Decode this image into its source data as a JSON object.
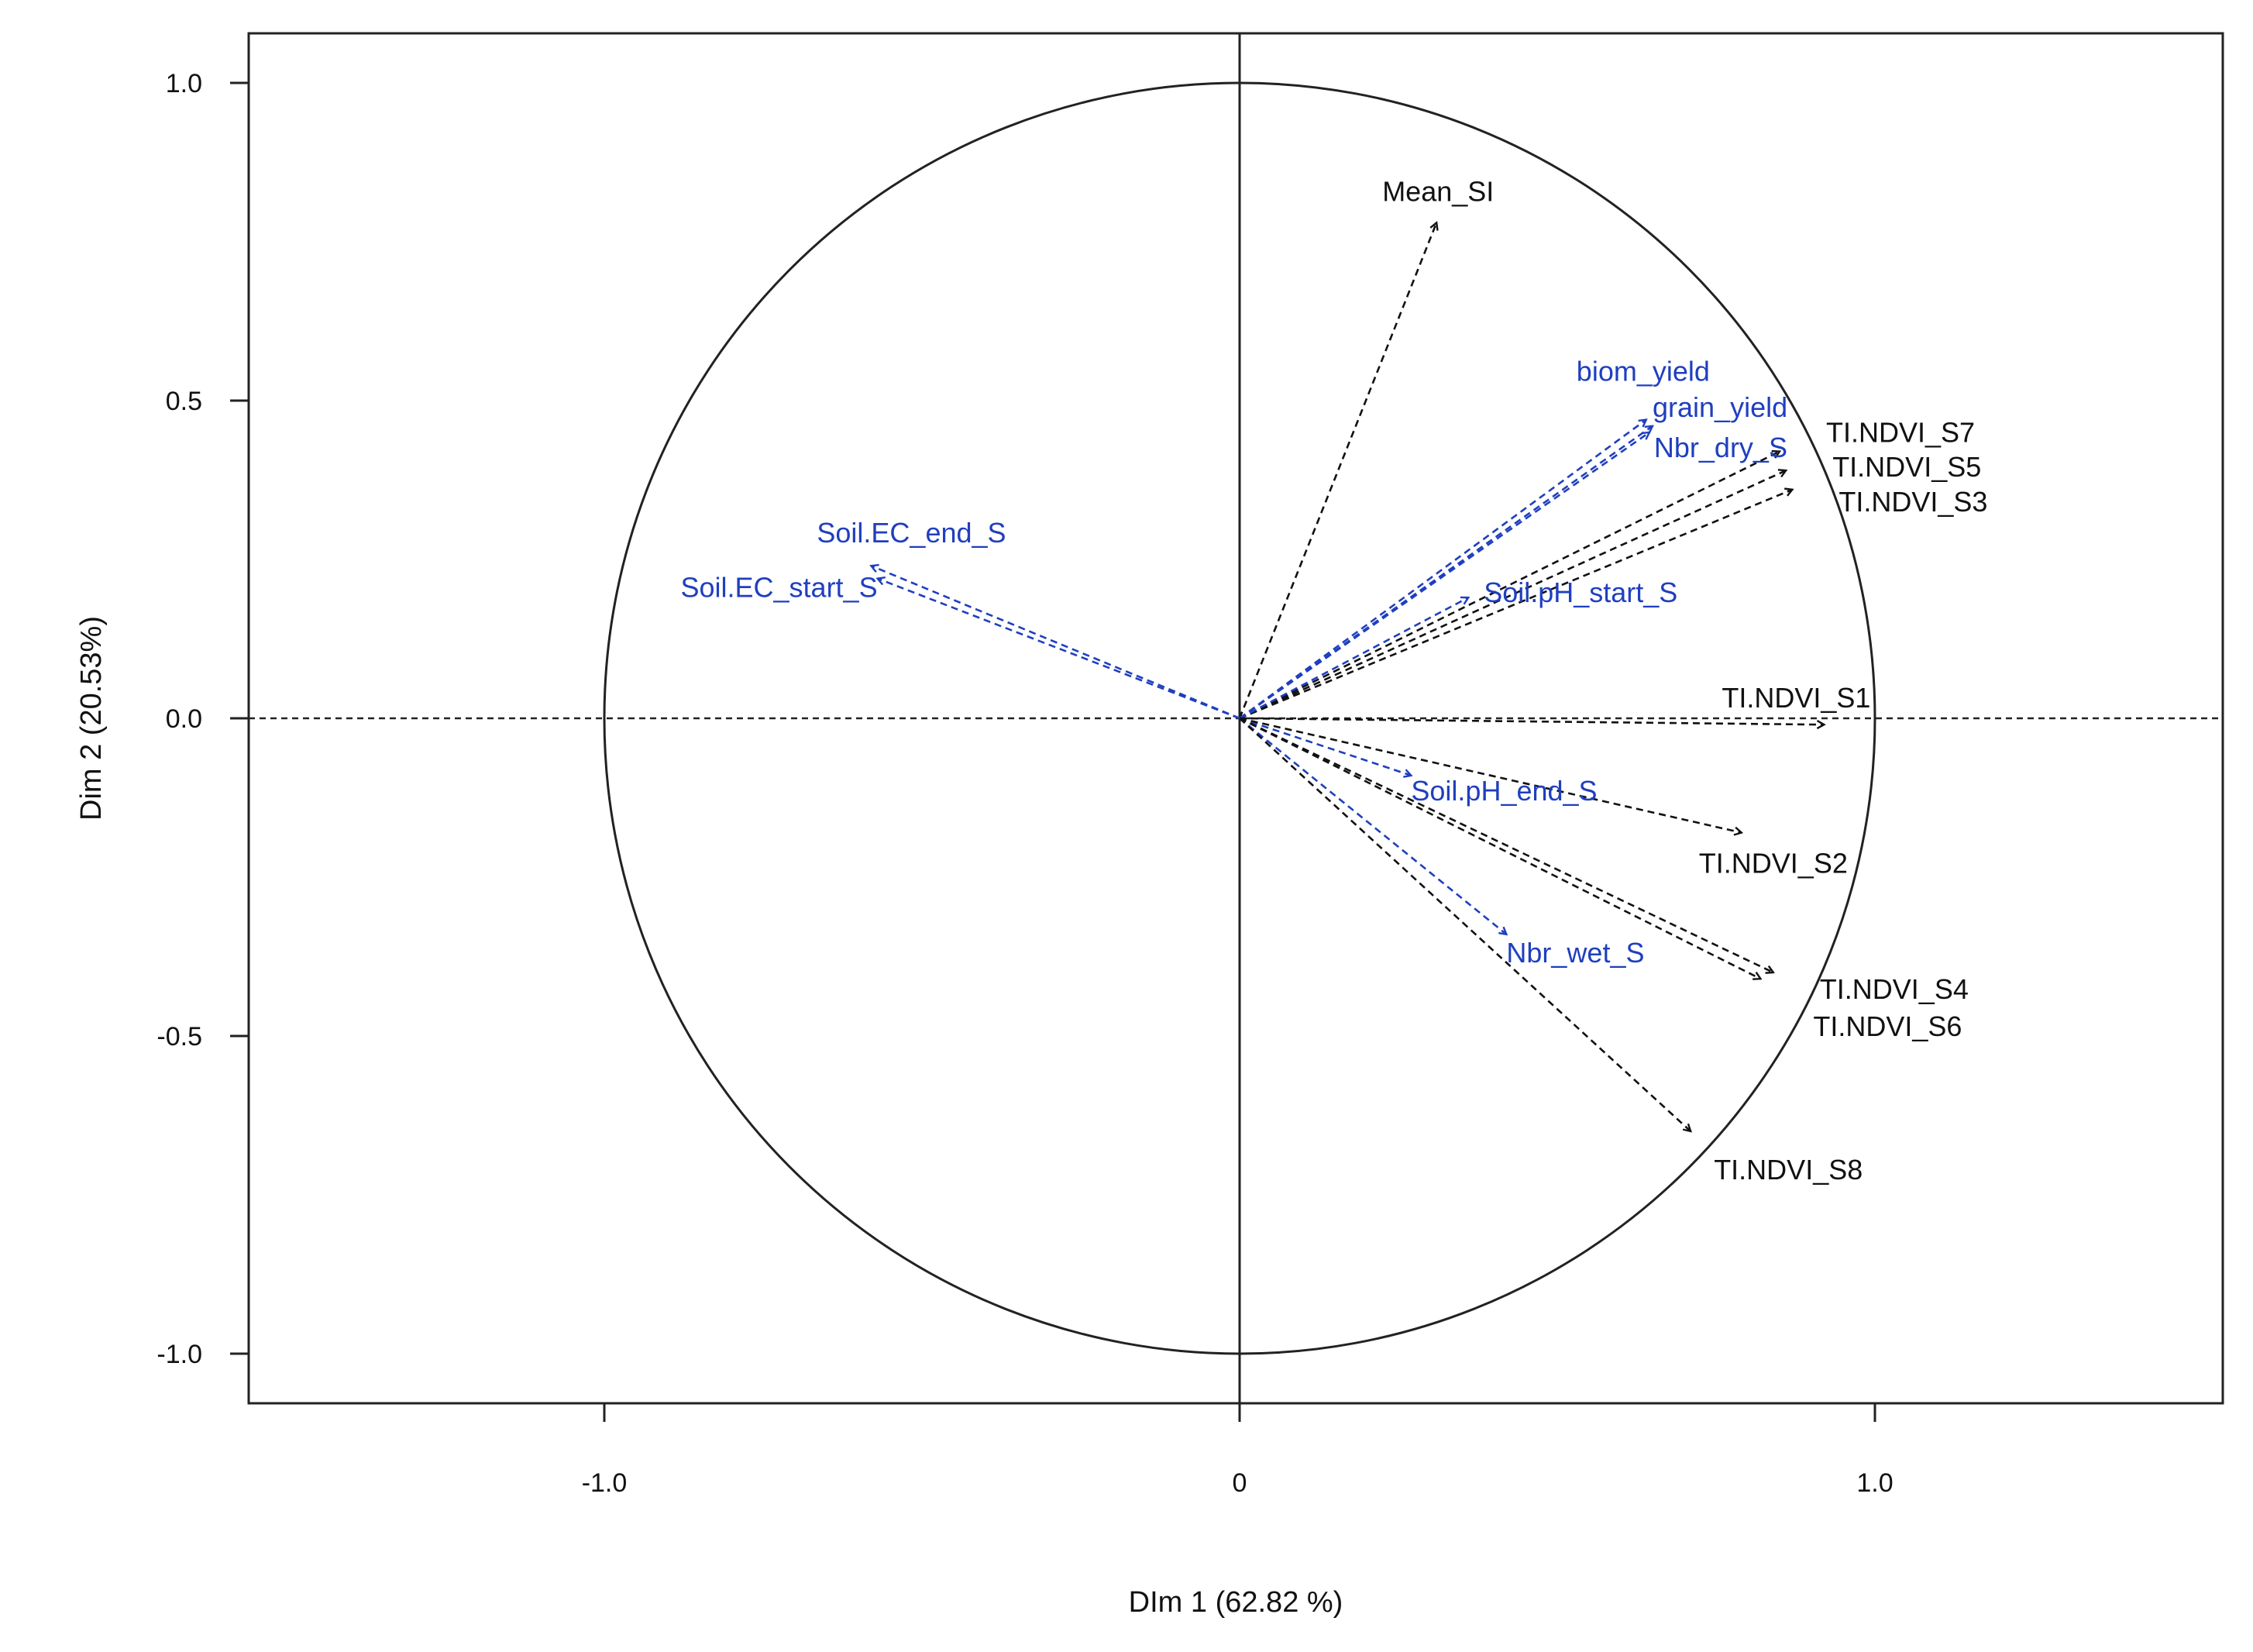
{
  "chart_data": {
    "type": "scatter",
    "subtype": "pca-correlation-circle",
    "xlabel": "DIm 1 (62.82 %)",
    "ylabel": "Dim 2 (20.53%)",
    "xlim": [
      -1.56,
      1.55
    ],
    "ylim": [
      -1.08,
      1.08
    ],
    "x_ticks": [
      {
        "value": -1.0,
        "label": "-1.0"
      },
      {
        "value": 0.0,
        "label": "0"
      },
      {
        "value": 1.0,
        "label": "1.0"
      }
    ],
    "y_ticks": [
      {
        "value": 1.0,
        "label": "1.0"
      },
      {
        "value": 0.5,
        "label": "0.5"
      },
      {
        "value": 0.0,
        "label": "0.0"
      },
      {
        "value": -0.5,
        "label": "-0.5"
      },
      {
        "value": -1.0,
        "label": "-1.0"
      }
    ],
    "unit_circle": true,
    "grid": false,
    "colors": {
      "primary_variable": "#111111",
      "supplementary_variable": "#1f3fbf"
    },
    "variables": [
      {
        "label": "Mean_SI",
        "x": 0.31,
        "y": 0.78,
        "group": "primary"
      },
      {
        "label": "biom_yield",
        "x": 0.64,
        "y": 0.47,
        "group": "supplementary"
      },
      {
        "label": "grain_yield",
        "x": 0.65,
        "y": 0.46,
        "group": "supplementary"
      },
      {
        "label": "Nbr_dry_S",
        "x": 0.645,
        "y": 0.45,
        "group": "supplementary"
      },
      {
        "label": "TI.NDVI_S7",
        "x": 0.85,
        "y": 0.42,
        "group": "primary"
      },
      {
        "label": "TI.NDVI_S5",
        "x": 0.86,
        "y": 0.39,
        "group": "primary"
      },
      {
        "label": "TI.NDVI_S3",
        "x": 0.87,
        "y": 0.36,
        "group": "primary"
      },
      {
        "label": "Soil.pH_start_S",
        "x": 0.36,
        "y": 0.19,
        "group": "supplementary"
      },
      {
        "label": "Soil.EC_end_S",
        "x": -0.58,
        "y": 0.24,
        "group": "supplementary"
      },
      {
        "label": "Soil.EC_start_S",
        "x": -0.57,
        "y": 0.22,
        "group": "supplementary"
      },
      {
        "label": "TI.NDVI_S1",
        "x": 0.92,
        "y": -0.01,
        "group": "primary"
      },
      {
        "label": "Soil.pH_end_S",
        "x": 0.27,
        "y": -0.09,
        "group": "supplementary"
      },
      {
        "label": "TI.NDVI_S2",
        "x": 0.79,
        "y": -0.18,
        "group": "primary"
      },
      {
        "label": "Nbr_wet_S",
        "x": 0.42,
        "y": -0.34,
        "group": "supplementary"
      },
      {
        "label": "TI.NDVI_S4",
        "x": 0.84,
        "y": -0.4,
        "group": "primary"
      },
      {
        "label": "TI.NDVI_S6",
        "x": 0.82,
        "y": -0.41,
        "group": "primary"
      },
      {
        "label": "TI.NDVI_S8",
        "x": 0.71,
        "y": -0.65,
        "group": "primary"
      }
    ]
  }
}
